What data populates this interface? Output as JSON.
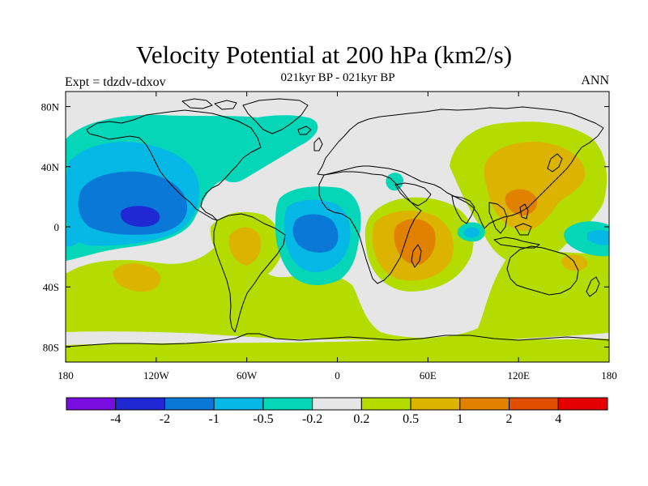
{
  "header": {
    "title": "Velocity Potential at 200 hPa (km2/s)",
    "subtitle": "021kyr BP - 021kyr BP",
    "left_label": "Expt = tdzdv-tdxov",
    "right_label": "ANN"
  },
  "map": {
    "projection": "equirectangular",
    "lon_range": [
      -180,
      180
    ],
    "lat_range": [
      -90,
      90
    ],
    "background_color": "#e6e6e6",
    "coastline_color": "#000000",
    "x_ticks": [
      {
        "lon": -180,
        "label": "180"
      },
      {
        "lon": -120,
        "label": "120W"
      },
      {
        "lon": -60,
        "label": "60W"
      },
      {
        "lon": 0,
        "label": "0"
      },
      {
        "lon": 60,
        "label": "60E"
      },
      {
        "lon": 120,
        "label": "120E"
      },
      {
        "lon": 180,
        "label": "180"
      }
    ],
    "y_ticks": [
      {
        "lat": 80,
        "label": "80N"
      },
      {
        "lat": 40,
        "label": "40N"
      },
      {
        "lat": 0,
        "label": "0"
      },
      {
        "lat": -40,
        "label": "40S"
      },
      {
        "lat": -80,
        "label": "80S"
      }
    ]
  },
  "chart_data": {
    "type": "heatmap",
    "title": "Velocity Potential at 200 hPa (km2/s)",
    "subtitle": "021kyr BP - 021kyr BP",
    "xlabel": "",
    "ylabel": "",
    "xlim": [
      -180,
      180
    ],
    "ylim": [
      -90,
      90
    ],
    "grid": false,
    "legend_position": "bottom",
    "features": [
      {
        "lon": -130,
        "lat": 10,
        "value": -4.5
      },
      {
        "lon": -35,
        "lat": 0,
        "value": -1.5
      },
      {
        "lon": -175,
        "lat": -5,
        "value": -0.5
      },
      {
        "lon": 175,
        "lat": -5,
        "value": -0.8
      },
      {
        "lon": -65,
        "lat": -10,
        "value": 1.2
      },
      {
        "lon": -140,
        "lat": -35,
        "value": 1.0
      },
      {
        "lon": 50,
        "lat": -12,
        "value": 2.0
      },
      {
        "lon": 120,
        "lat": 30,
        "value": 1.5
      },
      {
        "lon": 125,
        "lat": 15,
        "value": 2.0
      },
      {
        "lon": 155,
        "lat": -22,
        "value": 1.0
      },
      {
        "lon": 90,
        "lat": -10,
        "value": -0.5
      }
    ]
  },
  "colorbar": {
    "colors": [
      "#7a0de0",
      "#2028d4",
      "#0a78d6",
      "#06b8e6",
      "#05d6b8",
      "#e6e6e6",
      "#b4dc00",
      "#dcb400",
      "#e08200",
      "#e04e00",
      "#e40000"
    ],
    "tick_labels": [
      "-4",
      "-2",
      "-1",
      "-0.5",
      "-0.2",
      "0.2",
      "0.5",
      "1",
      "2",
      "4"
    ]
  }
}
